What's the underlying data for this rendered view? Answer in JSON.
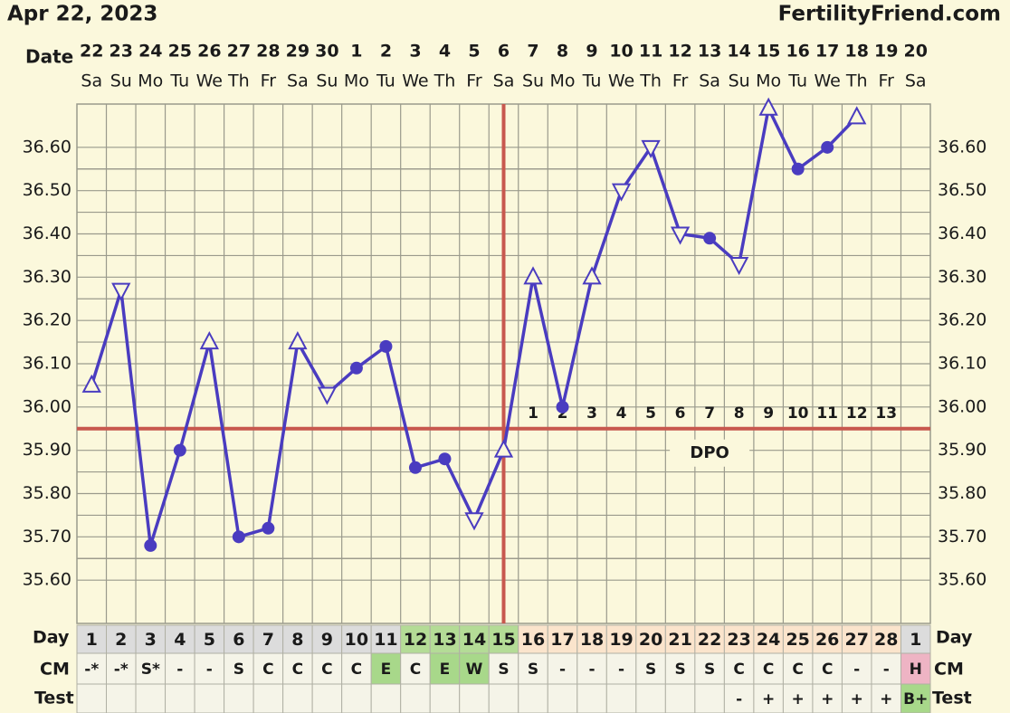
{
  "chart_data": {
    "type": "line",
    "title": "Apr 22, 2023",
    "brand": "FertilityFriend.com",
    "date_label": "Date",
    "day_label": "Day",
    "cm_label": "CM",
    "test_label": "Test",
    "dpo_label": "DPO",
    "categories": [
      "22",
      "23",
      "24",
      "25",
      "26",
      "27",
      "28",
      "29",
      "30",
      "1",
      "2",
      "3",
      "4",
      "5",
      "6",
      "7",
      "8",
      "9",
      "10",
      "11",
      "12",
      "13",
      "14",
      "15",
      "16",
      "17",
      "18",
      "19",
      "20"
    ],
    "weekdays": [
      "Sa",
      "Su",
      "Mo",
      "Tu",
      "We",
      "Th",
      "Fr",
      "Sa",
      "Su",
      "Mo",
      "Tu",
      "We",
      "Th",
      "Fr",
      "Sa",
      "Su",
      "Mo",
      "Tu",
      "We",
      "Th",
      "Fr",
      "Sa",
      "Su",
      "Mo",
      "Tu",
      "We",
      "Th",
      "Fr",
      "Sa"
    ],
    "series": [
      {
        "name": "Temperature",
        "color": "#4a3cc0",
        "values": [
          36.05,
          36.27,
          35.68,
          35.9,
          36.15,
          35.7,
          35.72,
          36.15,
          36.03,
          36.09,
          36.14,
          35.86,
          35.88,
          35.74,
          35.9,
          36.3,
          36.0,
          36.3,
          36.5,
          36.6,
          36.4,
          36.39,
          36.33,
          36.69,
          36.55,
          36.6,
          36.67,
          null,
          null
        ],
        "markers": [
          "up",
          "down",
          "circle",
          "circle",
          "up",
          "circle",
          "circle",
          "up",
          "down",
          "circle",
          "circle",
          "circle",
          "circle",
          "down",
          "up",
          "up",
          "circle",
          "up",
          "down",
          "down",
          "down",
          "circle",
          "down",
          "up",
          "circle",
          "circle",
          "up",
          null,
          null
        ]
      }
    ],
    "ylim": [
      35.5,
      36.7
    ],
    "yticks": [
      {
        "value": 36.6,
        "label": "36.60"
      },
      {
        "value": 36.5,
        "label": "36.50"
      },
      {
        "value": 36.4,
        "label": "36.40"
      },
      {
        "value": 36.3,
        "label": "36.30"
      },
      {
        "value": 36.2,
        "label": "36.20"
      },
      {
        "value": 36.1,
        "label": "36.10"
      },
      {
        "value": 36.0,
        "label": "36.00"
      },
      {
        "value": 35.9,
        "label": "35.90"
      },
      {
        "value": 35.8,
        "label": "35.80"
      },
      {
        "value": 35.7,
        "label": "35.70"
      },
      {
        "value": 35.6,
        "label": "35.60"
      }
    ],
    "grid": true,
    "coverline": 35.95,
    "coverline_color": "#c8584e",
    "ovulation_date": "6",
    "dpo": [
      null,
      null,
      null,
      null,
      null,
      null,
      null,
      null,
      null,
      null,
      null,
      null,
      null,
      null,
      null,
      1,
      2,
      3,
      4,
      5,
      6,
      7,
      8,
      9,
      10,
      11,
      12,
      13,
      null
    ],
    "cycle_days": [
      1,
      2,
      3,
      4,
      5,
      6,
      7,
      8,
      9,
      10,
      11,
      12,
      13,
      14,
      15,
      16,
      17,
      18,
      19,
      20,
      21,
      22,
      23,
      24,
      25,
      26,
      27,
      28,
      1
    ],
    "day_colors": [
      "#dcdcdc",
      "#dcdcdc",
      "#dcdcdc",
      "#dcdcdc",
      "#dcdcdc",
      "#dcdcdc",
      "#dcdcdc",
      "#dcdcdc",
      "#dcdcdc",
      "#dcdcdc",
      "#dcdcdc",
      "#b4dc96",
      "#b4dc96",
      "#b4dc96",
      "#b4dc96",
      "#fbe4cc",
      "#fbe4cc",
      "#fbe4cc",
      "#fbe4cc",
      "#fbe4cc",
      "#fbe4cc",
      "#fbe4cc",
      "#fbe4cc",
      "#fbe4cc",
      "#fbe4cc",
      "#fbe4cc",
      "#fbe4cc",
      "#fbe4cc",
      "#dcdcdc"
    ],
    "cm": [
      "-*",
      "-*",
      "S*",
      "-",
      "-",
      "S",
      "C",
      "C",
      "C",
      "C",
      "E",
      "C",
      "E",
      "W",
      "S",
      "S",
      "-",
      "-",
      "-",
      "S",
      "S",
      "S",
      "C",
      "C",
      "C",
      "C",
      "-",
      "-",
      "H"
    ],
    "cm_colors": [
      "#f5f4e8",
      "#f5f4e8",
      "#f5f4e8",
      "#f5f4e8",
      "#f5f4e8",
      "#f5f4e8",
      "#f5f4e8",
      "#f5f4e8",
      "#f5f4e8",
      "#f5f4e8",
      "#a8d88a",
      "#f5f4e8",
      "#a8d88a",
      "#a8d88a",
      "#f5f4e8",
      "#f5f4e8",
      "#f5f4e8",
      "#f5f4e8",
      "#f5f4e8",
      "#f5f4e8",
      "#f5f4e8",
      "#f5f4e8",
      "#f5f4e8",
      "#f5f4e8",
      "#f5f4e8",
      "#f5f4e8",
      "#f5f4e8",
      "#f5f4e8",
      "#eeb4c4"
    ],
    "test": [
      null,
      null,
      null,
      null,
      null,
      null,
      null,
      null,
      null,
      null,
      null,
      null,
      null,
      null,
      null,
      null,
      null,
      null,
      null,
      null,
      null,
      null,
      "-",
      "+",
      "+",
      "+",
      "+",
      "+",
      "B+"
    ],
    "test_colors": [
      "#f5f4e8",
      "#f5f4e8",
      "#f5f4e8",
      "#f5f4e8",
      "#f5f4e8",
      "#f5f4e8",
      "#f5f4e8",
      "#f5f4e8",
      "#f5f4e8",
      "#f5f4e8",
      "#f5f4e8",
      "#f5f4e8",
      "#f5f4e8",
      "#f5f4e8",
      "#f5f4e8",
      "#f5f4e8",
      "#f5f4e8",
      "#f5f4e8",
      "#f5f4e8",
      "#f5f4e8",
      "#f5f4e8",
      "#f5f4e8",
      "#f5f4e8",
      "#f5f4e8",
      "#f5f4e8",
      "#f5f4e8",
      "#f5f4e8",
      "#f5f4e8",
      "#a8d88a"
    ]
  }
}
